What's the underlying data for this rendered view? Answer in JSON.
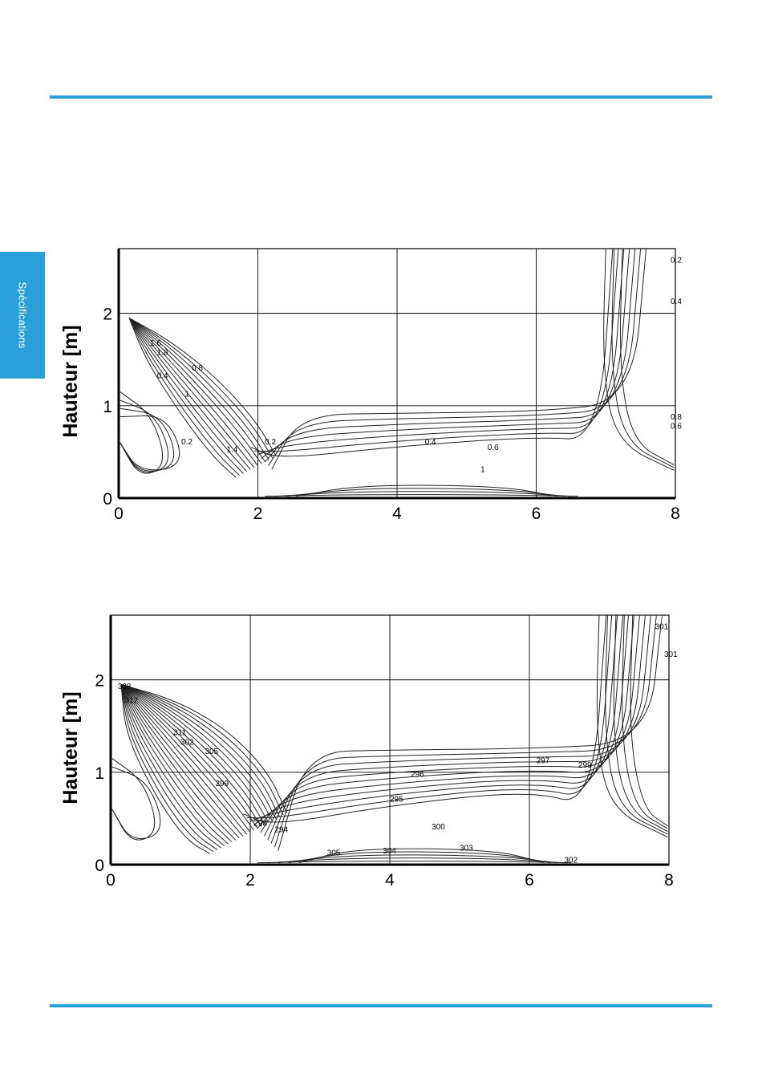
{
  "colors": {
    "accent": "#2a9fd8",
    "sidebar": "#2a9fd8"
  },
  "sidebar": {
    "label": "Spécifications"
  },
  "figures": [
    {
      "ylabel": "Hauteur [m]",
      "xticks": [
        "0",
        "2",
        "4",
        "6",
        "8"
      ],
      "yticks": [
        "0",
        "1",
        "2"
      ],
      "contour_labels": [
        "1.6",
        "1.8",
        "0.8",
        "0.4",
        "0.2",
        "1",
        "1.4",
        "0.2",
        "0.4",
        "0.6",
        "1",
        "0.8",
        "0.6",
        "0.4",
        "0.2"
      ]
    },
    {
      "ylabel": "Hauteur [m]",
      "xticks": [
        "0",
        "2",
        "4",
        "6",
        "8"
      ],
      "yticks": [
        "0",
        "1",
        "2"
      ],
      "contour_labels": [
        "308",
        "312",
        "311",
        "302",
        "305",
        "299",
        "298",
        "294",
        "296",
        "295",
        "297",
        "299",
        "301",
        "300",
        "301",
        "305",
        "304",
        "303",
        "302"
      ]
    }
  ],
  "chart_data": [
    {
      "type": "contour",
      "ylabel": "Hauteur [m]",
      "xlim": [
        0,
        8
      ],
      "ylim": [
        0,
        2.7
      ],
      "grid": true,
      "levels_labeled": [
        0.2,
        0.4,
        0.6,
        0.8,
        1,
        1.4,
        1.6,
        1.8
      ]
    },
    {
      "type": "contour",
      "ylabel": "Hauteur [m]",
      "xlim": [
        0,
        8
      ],
      "ylim": [
        0,
        2.7
      ],
      "grid": true,
      "levels_labeled": [
        294,
        295,
        296,
        297,
        298,
        299,
        300,
        301,
        302,
        303,
        304,
        305,
        308,
        311,
        312
      ]
    }
  ]
}
